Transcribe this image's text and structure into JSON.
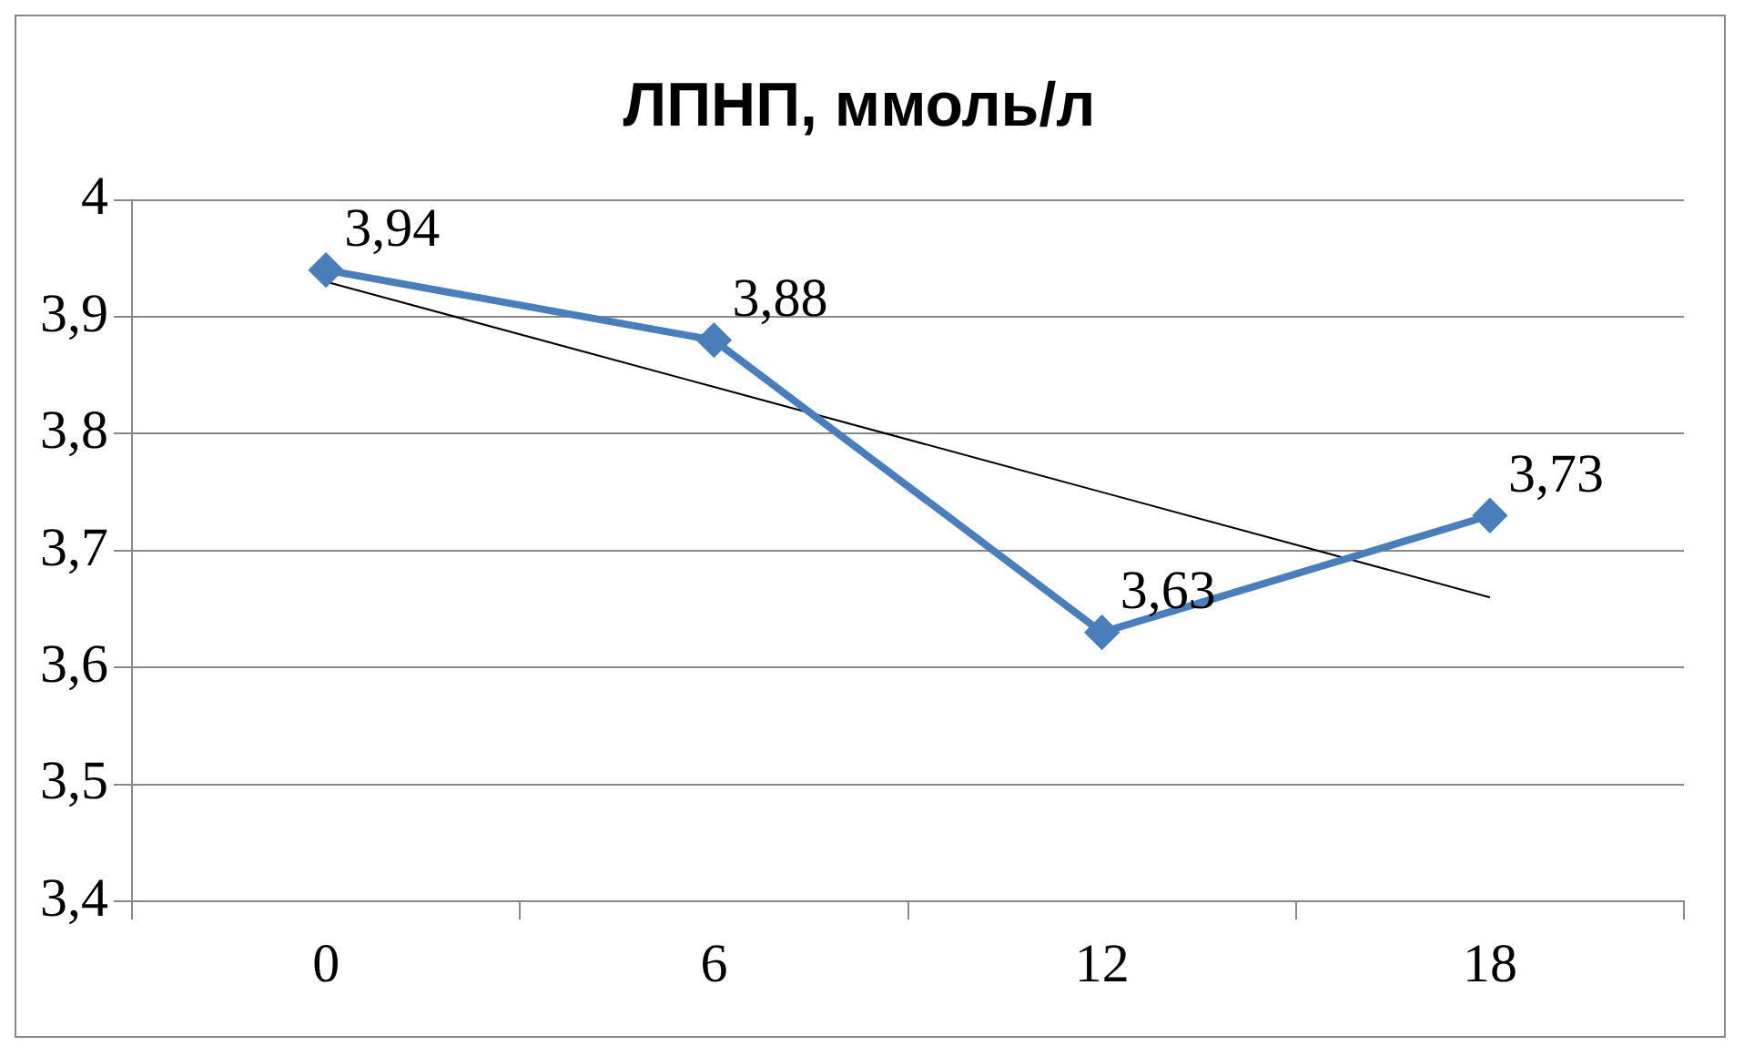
{
  "chart_data": {
    "type": "line",
    "title": "ЛПНП, ммоль/л",
    "categories": [
      "0",
      "6",
      "12",
      "18"
    ],
    "series": [
      {
        "color": "#4a7ebb",
        "values": [
          3.94,
          3.88,
          3.63,
          3.73
        ],
        "value_labels": [
          "3,94",
          "3,88",
          "3,63",
          "3,73"
        ],
        "marker": "diamond"
      },
      {
        "type": "line",
        "color": "#000000",
        "values": [
          3.93,
          3.84,
          3.75,
          3.66
        ],
        "marker": "none"
      }
    ],
    "ylim": [
      3.4,
      4
    ],
    "yticks": [
      {
        "value": 3.4,
        "label": "3,4"
      },
      {
        "value": 3.5,
        "label": "3,5"
      },
      {
        "value": 3.6,
        "label": "3,6"
      },
      {
        "value": 3.7,
        "label": "3,7"
      },
      {
        "value": 3.8,
        "label": "3,8"
      },
      {
        "value": 3.9,
        "label": "3,9"
      },
      {
        "value": 4,
        "label": "4"
      }
    ],
    "grid": "y",
    "legend": false
  }
}
